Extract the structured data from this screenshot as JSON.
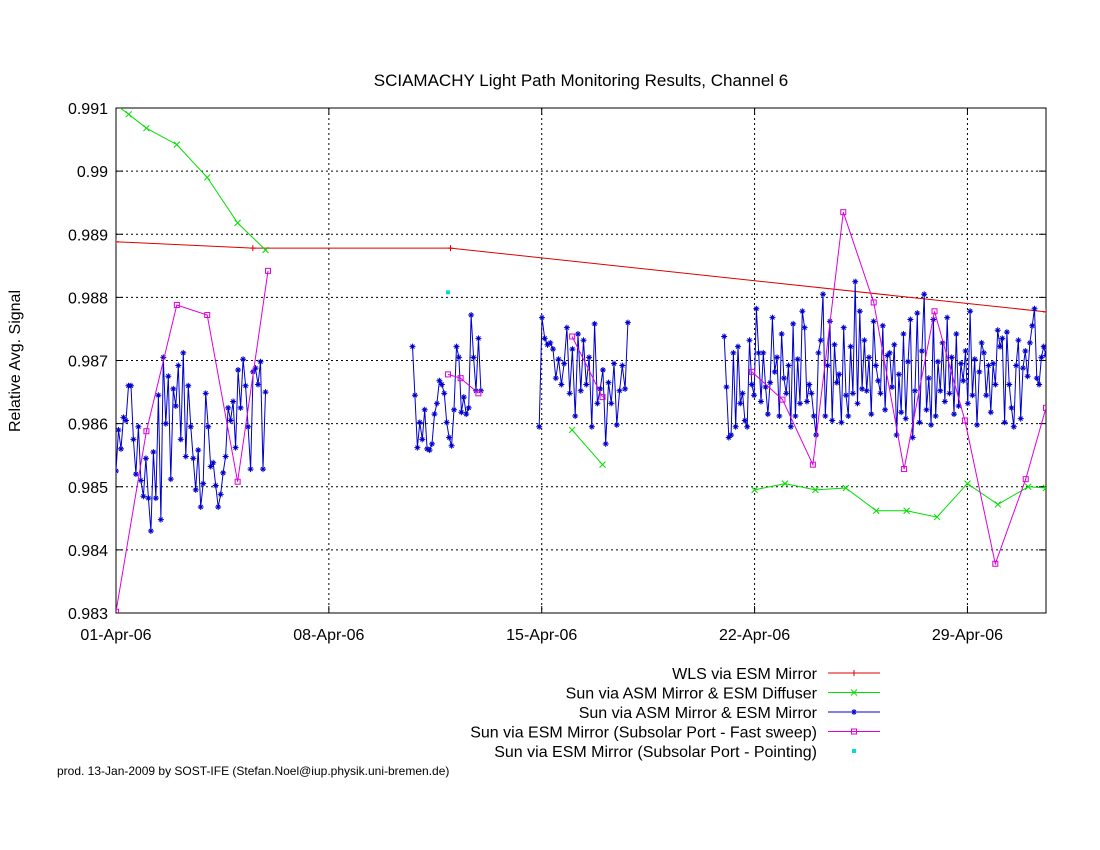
{
  "chart_data": {
    "type": "line",
    "title": "SCIAMACHY Light Path Monitoring Results, Channel 6",
    "xlabel": "",
    "ylabel": "Relative Avg. Signal",
    "xlim": [
      "2006-04-01",
      "2006-05-01T14:00"
    ],
    "ylim": [
      0.983,
      0.991
    ],
    "xticks": [
      {
        "label": "01-Apr-06",
        "date": "2006-04-01"
      },
      {
        "label": "08-Apr-06",
        "date": "2006-04-08"
      },
      {
        "label": "15-Apr-06",
        "date": "2006-04-15"
      },
      {
        "label": "22-Apr-06",
        "date": "2006-04-22"
      },
      {
        "label": "29-Apr-06",
        "date": "2006-04-29"
      }
    ],
    "yticks": [
      "0.983",
      "0.984",
      "0.985",
      "0.986",
      "0.987",
      "0.988",
      "0.989",
      "0.99",
      "0.991"
    ],
    "grid": true,
    "legend_position": "bottom-right",
    "series": [
      {
        "name": "WLS via ESM Mirror",
        "color": "#dd0000",
        "marker": "plus",
        "line": true,
        "points": [
          [
            "2006-04-01T00:00",
            0.98888
          ],
          [
            "2006-04-05T12:00",
            0.98878
          ],
          [
            "2006-04-12T00:00",
            0.98878
          ],
          [
            "2006-05-01T14:00",
            0.98777
          ]
        ]
      },
      {
        "name": "Sun via ASM Mirror & ESM Diffuser",
        "color": "#00dd00",
        "marker": "x",
        "line": true,
        "points": [
          [
            "2006-04-01T00:00",
            0.99105
          ],
          [
            "2006-04-01T10:00",
            0.9909
          ],
          [
            "2006-04-02T00:00",
            0.99068
          ],
          [
            "2006-04-03T00:00",
            0.99042
          ],
          [
            "2006-04-04T00:00",
            0.9899
          ],
          [
            "2006-04-05T00:00",
            0.98918
          ],
          [
            "2006-04-05T22:00",
            0.98875
          ],
          null,
          [
            "2006-04-16T00:00",
            0.9859
          ],
          [
            "2006-04-17T00:00",
            0.98535
          ],
          null,
          [
            "2006-04-22T00:00",
            0.98495
          ],
          [
            "2006-04-23T00:00",
            0.98505
          ],
          [
            "2006-04-24T00:00",
            0.98495
          ],
          [
            "2006-04-25T00:00",
            0.98498
          ],
          [
            "2006-04-26T00:00",
            0.98462
          ],
          [
            "2006-04-27T00:00",
            0.98462
          ],
          [
            "2006-04-28T00:00",
            0.98452
          ],
          [
            "2006-04-29T00:00",
            0.98505
          ],
          [
            "2006-04-30T00:00",
            0.98472
          ],
          [
            "2006-05-01T00:00",
            0.985
          ],
          [
            "2006-05-01T14:00",
            0.98498
          ]
        ]
      },
      {
        "name": "Sun via ASM Mirror & ESM Mirror",
        "color": "#0000cc",
        "marker": "star",
        "line": true,
        "segments": [
          {
            "start": "2006-04-01T00:00",
            "end": "2006-04-05T22:00",
            "values": [
              0.98525,
              0.9859,
              0.9856,
              0.9861,
              0.98605,
              0.9866,
              0.9866,
              0.98575,
              0.9852,
              0.98595,
              0.9851,
              0.98485,
              0.98545,
              0.98482,
              0.9843,
              0.98555,
              0.98482,
              0.98645,
              0.98448,
              0.98705,
              0.986,
              0.98675,
              0.98512,
              0.98655,
              0.98628,
              0.98692,
              0.98575,
              0.98712,
              0.98548,
              0.9866,
              0.98595,
              0.98545,
              0.98495,
              0.98558,
              0.98468,
              0.98505,
              0.98648,
              0.98595,
              0.98532,
              0.98538,
              0.98502,
              0.98468,
              0.98488,
              0.98522,
              0.98548,
              0.98625,
              0.98605,
              0.98635,
              0.98562,
              0.98685,
              0.98625,
              0.98702,
              0.9866,
              0.98595,
              0.98528,
              0.98682,
              0.98688,
              0.98662,
              0.98698,
              0.98528,
              0.9865
            ]
          },
          {
            "start": "2006-04-10T18:00",
            "end": "2006-04-13T00:00",
            "values": [
              0.98722,
              0.98645,
              0.98562,
              0.98602,
              0.98575,
              0.98622,
              0.9856,
              0.98558,
              0.98568,
              0.98615,
              0.98632,
              0.98668,
              0.98662,
              0.98648,
              0.98602,
              0.98578,
              0.98565,
              0.98622,
              0.98722,
              0.98705,
              0.98618,
              0.98642,
              0.98615,
              0.98625,
              0.98772,
              0.98705,
              0.98652,
              0.98735,
              0.98652
            ]
          },
          {
            "start": "2006-04-14T22:00",
            "end": "2006-04-17T20:00",
            "values": [
              0.98595,
              0.98768,
              0.98735,
              0.98725,
              0.98728,
              0.98718,
              0.98672,
              0.98702,
              0.98662,
              0.98695,
              0.98752,
              0.98648,
              0.98718,
              0.98612,
              0.98742,
              0.98652,
              0.98732,
              0.98662,
              0.98705,
              0.98595,
              0.98758,
              0.98632,
              0.98655,
              0.98685,
              0.98568,
              0.98665,
              0.98632,
              0.98695,
              0.98598,
              0.98652,
              0.98692,
              0.98655,
              0.9876
            ]
          },
          {
            "start": "2006-04-21T00:00",
            "end": "2006-05-01T14:00",
            "values": [
              0.98738,
              0.98658,
              0.98578,
              0.98582,
              0.98712,
              0.98595,
              0.98722,
              0.98632,
              0.98648,
              0.98605,
              0.98595,
              0.98732,
              0.98662,
              0.98645,
              0.98782,
              0.98712,
              0.98635,
              0.98712,
              0.98658,
              0.98615,
              0.98665,
              0.98768,
              0.98682,
              0.98705,
              0.98612,
              0.98742,
              0.98672,
              0.98648,
              0.98692,
              0.98595,
              0.98758,
              0.98612,
              0.98702,
              0.98632,
              0.98778,
              0.98752,
              0.98635,
              0.98662,
              0.98648,
              0.98612,
              0.98582,
              0.98712,
              0.98732,
              0.98805,
              0.98612,
              0.98692,
              0.98762,
              0.98605,
              0.98725,
              0.98665,
              0.98678,
              0.98602,
              0.98752,
              0.98645,
              0.98612,
              0.98722,
              0.98648,
              0.98825,
              0.98632,
              0.98778,
              0.98655,
              0.98732,
              0.98652,
              0.98705,
              0.98615,
              0.98762,
              0.98692,
              0.98668,
              0.98648,
              0.98755,
              0.98622,
              0.98708,
              0.98712,
              0.98658,
              0.98725,
              0.98582,
              0.98678,
              0.98618,
              0.98742,
              0.98608,
              0.98698,
              0.98765,
              0.98578,
              0.98652,
              0.98775,
              0.98602,
              0.98715,
              0.98805,
              0.98622,
              0.98672,
              0.98598,
              0.98765,
              0.98612,
              0.98698,
              0.98652,
              0.98728,
              0.98635,
              0.98768,
              0.98648,
              0.98705,
              0.98615,
              0.98742,
              0.98628,
              0.98695,
              0.98668,
              0.98715,
              0.98632,
              0.98778,
              0.98645,
              0.98702,
              0.98598,
              0.98682,
              0.98728,
              0.98712,
              0.98645,
              0.98692,
              0.98618,
              0.98695,
              0.98662,
              0.98748,
              0.98722,
              0.98735,
              0.98602,
              0.98745,
              0.98662,
              0.98625,
              0.98595,
              0.98692,
              0.98732,
              0.98608,
              0.98688,
              0.98715,
              0.98675,
              0.98728,
              0.98755,
              0.98782,
              0.98672,
              0.98662,
              0.98705,
              0.98722,
              0.98708
            ]
          }
        ]
      },
      {
        "name": "Sun via ESM Mirror (Subsolar Port - Fast sweep)",
        "color": "#dd00dd",
        "marker": "square",
        "line": true,
        "points": [
          [
            "2006-04-01T00:00",
            0.98302
          ],
          [
            "2006-04-02T00:00",
            0.98588
          ],
          [
            "2006-04-03T00:00",
            0.98788
          ],
          [
            "2006-04-04T00:00",
            0.98772
          ],
          [
            "2006-04-05T00:00",
            0.98508
          ],
          [
            "2006-04-06T00:00",
            0.98842
          ],
          null,
          [
            "2006-04-11T22:00",
            0.98678
          ],
          [
            "2006-04-12T08:00",
            0.98672
          ],
          [
            "2006-04-12T22:00",
            0.98648
          ],
          null,
          [
            "2006-04-16T00:00",
            0.98738
          ],
          [
            "2006-04-17T00:00",
            0.98642
          ],
          null,
          [
            "2006-04-21T22:00",
            0.98682
          ],
          [
            "2006-04-22T22:00",
            0.98638
          ],
          [
            "2006-04-23T22:00",
            0.98535
          ],
          [
            "2006-04-24T22:00",
            0.98935
          ],
          [
            "2006-04-25T22:00",
            0.98792
          ],
          [
            "2006-04-26T22:00",
            0.98528
          ],
          [
            "2006-04-27T22:00",
            0.98778
          ],
          [
            "2006-04-28T22:00",
            0.98605
          ],
          [
            "2006-04-29T22:00",
            0.98378
          ],
          [
            "2006-04-30T22:00",
            0.98512
          ],
          [
            "2006-05-01T14:00",
            0.98625
          ]
        ]
      },
      {
        "name": "Sun via ESM Mirror (Subsolar Port - Pointing)",
        "color": "#00dddd",
        "marker": "dot",
        "line": false,
        "points": [
          [
            "2006-04-11T22:00",
            0.98808
          ]
        ]
      }
    ]
  },
  "footer": "prod. 13-Jan-2009 by SOST-IFE (Stefan.Noel@iup.physik.uni-bremen.de)"
}
